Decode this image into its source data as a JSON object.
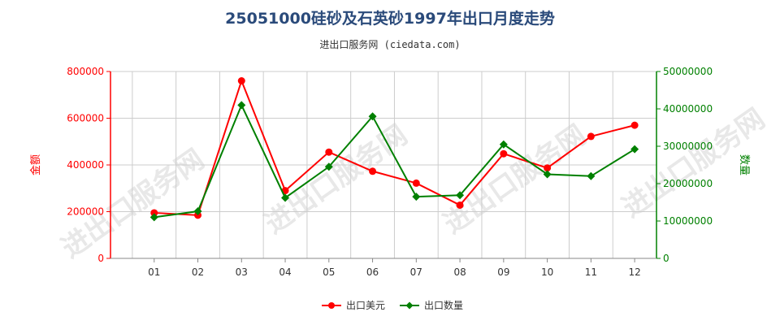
{
  "title": "25051000硅砂及石英砂1997年出口月度走势",
  "subtitle": "进出口服务网 (ciedata.com)",
  "watermark": "进出口服务网",
  "colors": {
    "left_axis": "#ff0000",
    "right_axis": "#008000",
    "grid": "#cccccc",
    "title": "#2a4a7a"
  },
  "chart_data": {
    "type": "line",
    "categories": [
      "01",
      "02",
      "03",
      "04",
      "05",
      "06",
      "07",
      "08",
      "09",
      "10",
      "11",
      "12"
    ],
    "left_axis": {
      "label": "金额",
      "min": 0,
      "max": 800000,
      "ticks": [
        "0",
        "200000",
        "400000",
        "600000",
        "800000"
      ]
    },
    "right_axis": {
      "label": "数量",
      "min": 0,
      "max": 50000000,
      "ticks": [
        "0",
        "10000000",
        "20000000",
        "30000000",
        "40000000",
        "50000000"
      ]
    },
    "series": [
      {
        "name": "出口美元",
        "axis": "left",
        "color": "#ff0000",
        "values": [
          195000,
          185000,
          760000,
          290000,
          455000,
          373000,
          322000,
          228000,
          448000,
          387000,
          522000,
          570000
        ]
      },
      {
        "name": "出口数量",
        "axis": "right",
        "color": "#008000",
        "values": [
          11000000,
          12600000,
          41000000,
          16200000,
          24500000,
          38000000,
          16500000,
          16900000,
          30500000,
          22500000,
          22000000,
          29200000
        ]
      }
    ],
    "grid": true,
    "legend": "bottom-center"
  }
}
